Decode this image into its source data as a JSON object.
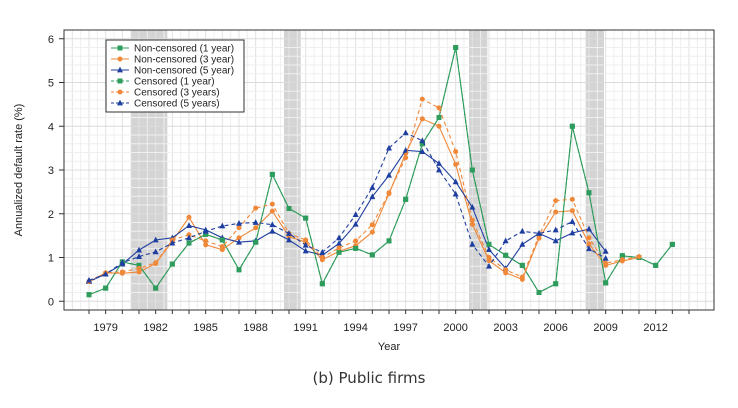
{
  "caption": "(b) Public firms",
  "chart_data": {
    "type": "line",
    "title": "",
    "xlabel": "Year",
    "ylabel": "Annualized default rate (%)",
    "xlim": [
      1976.5,
      2015.5
    ],
    "ylim": [
      -0.2,
      6.2
    ],
    "yticks": [
      0,
      1,
      2,
      3,
      4,
      5,
      6
    ],
    "xticks": [
      1979,
      1982,
      1985,
      1988,
      1991,
      1994,
      1997,
      2000,
      2003,
      2006,
      2009,
      2012
    ],
    "grid": true,
    "legend_position": "top-left",
    "recession_bands": [
      [
        1980.5,
        1982.7
      ],
      [
        1989.7,
        1990.7
      ],
      [
        2000.8,
        2001.9
      ],
      [
        2007.8,
        2008.9
      ]
    ],
    "series": [
      {
        "name": "Non-censored (1 year)",
        "color": "#2e9c5c",
        "dash": "solid",
        "marker": "square",
        "x": [
          1978,
          1979,
          1980,
          1981,
          1982,
          1983,
          1984,
          1985,
          1986,
          1987,
          1988,
          1989,
          1990,
          1991,
          1992,
          1993,
          1994,
          1995,
          1996,
          1997,
          1998,
          1999,
          2000,
          2001,
          2002,
          2003,
          2004,
          2005,
          2006,
          2007,
          2008,
          2009,
          2010,
          2011,
          2012,
          2013,
          2014
        ],
        "values": [
          0.15,
          0.3,
          0.9,
          0.82,
          0.3,
          0.85,
          1.33,
          1.53,
          1.4,
          0.72,
          1.35,
          2.9,
          2.12,
          1.9,
          0.4,
          1.12,
          1.21,
          1.06,
          1.38,
          2.33,
          3.6,
          4.2,
          5.8,
          3.0,
          1.3,
          1.05,
          0.82,
          0.2,
          0.4,
          4.0,
          2.48,
          0.42,
          1.04,
          1.0,
          0.82,
          1.3,
          null
        ]
      },
      {
        "name": "Non-censored (3 year)",
        "color": "#f0883a",
        "dash": "solid",
        "marker": "circle",
        "x": [
          1978,
          1979,
          1980,
          1981,
          1982,
          1983,
          1984,
          1985,
          1986,
          1987,
          1988,
          1989,
          1990,
          1991,
          1992,
          1993,
          1994,
          1995,
          1996,
          1997,
          1998,
          1999,
          2000,
          2001,
          2002,
          2003,
          2004,
          2005,
          2006,
          2007,
          2008,
          2009,
          2010,
          2011
        ],
        "values": [
          0.45,
          0.65,
          0.64,
          0.67,
          0.86,
          1.37,
          1.92,
          1.29,
          1.18,
          1.45,
          1.68,
          2.06,
          1.48,
          1.35,
          0.95,
          1.14,
          1.27,
          1.58,
          2.46,
          3.38,
          4.17,
          4.0,
          3.13,
          1.76,
          0.93,
          0.65,
          0.5,
          1.44,
          2.04,
          2.07,
          1.31,
          0.82,
          0.92,
          1.0
        ]
      },
      {
        "name": "Non-censored (5 year)",
        "color": "#1f3fa0",
        "dash": "solid",
        "marker": "triangle",
        "x": [
          1978,
          1979,
          1980,
          1981,
          1982,
          1983,
          1984,
          1985,
          1986,
          1987,
          1988,
          1989,
          1990,
          1991,
          1992,
          1993,
          1994,
          1995,
          1996,
          1997,
          1998,
          1999,
          2000,
          2001,
          2002,
          2003,
          2004,
          2005,
          2006,
          2007,
          2008,
          2009
        ],
        "values": [
          0.45,
          0.62,
          0.85,
          1.17,
          1.4,
          1.45,
          1.73,
          1.63,
          1.45,
          1.35,
          1.38,
          1.6,
          1.4,
          1.15,
          1.05,
          1.32,
          1.76,
          2.39,
          2.88,
          3.45,
          3.42,
          3.15,
          2.73,
          2.15,
          1.18,
          0.75,
          1.3,
          1.55,
          1.38,
          1.56,
          1.65,
          1.14
        ]
      },
      {
        "name": "Censored (1 year)",
        "color": "#2e9c5c",
        "dash": "dashed",
        "marker": "square",
        "x": [
          1978,
          1979,
          1980,
          1981,
          1982,
          1983,
          1984,
          1985,
          1986,
          1987,
          1988,
          1989,
          1990,
          1991,
          1992,
          1993,
          1994,
          1995,
          1996,
          1997,
          1998,
          1999,
          2000,
          2001,
          2002,
          2003,
          2004,
          2005,
          2006,
          2007,
          2008,
          2009,
          2010,
          2011,
          2012,
          2013
        ],
        "values": [
          0.15,
          0.3,
          0.9,
          0.82,
          0.3,
          0.85,
          1.33,
          1.53,
          1.4,
          0.72,
          1.35,
          2.9,
          2.12,
          1.9,
          0.4,
          1.12,
          1.21,
          1.06,
          1.38,
          2.33,
          3.6,
          4.2,
          5.8,
          3.0,
          1.3,
          1.05,
          0.82,
          0.2,
          0.4,
          4.0,
          2.48,
          0.42,
          1.04,
          1.0,
          0.82,
          1.3
        ]
      },
      {
        "name": "Censored (3 years)",
        "color": "#f0883a",
        "dash": "dashed",
        "marker": "circle",
        "x": [
          1978,
          1979,
          1980,
          1981,
          1982,
          1983,
          1984,
          1985,
          1986,
          1987,
          1988,
          1989,
          1990,
          1991,
          1992,
          1993,
          1994,
          1995,
          1996,
          1997,
          1998,
          1999,
          2000,
          2001,
          2002,
          2003,
          2004,
          2005,
          2006,
          2007,
          2008,
          2009,
          2010,
          2011
        ],
        "values": [
          0.45,
          0.65,
          0.67,
          0.75,
          0.88,
          1.4,
          1.52,
          1.38,
          1.25,
          1.68,
          2.13,
          2.22,
          1.55,
          1.4,
          1.0,
          1.22,
          1.38,
          1.75,
          2.48,
          3.28,
          4.62,
          4.42,
          3.42,
          1.85,
          1.0,
          0.72,
          0.55,
          1.5,
          2.3,
          2.33,
          1.45,
          0.87,
          0.95,
          1.02
        ]
      },
      {
        "name": "Censored (5 years)",
        "color": "#1f3fa0",
        "dash": "dashed",
        "marker": "triangle",
        "x": [
          1978,
          1979,
          1980,
          1981,
          1982,
          1983,
          1984,
          1985,
          1986,
          1987,
          1988,
          1989,
          1990,
          1991,
          1992,
          1993,
          1994,
          1995,
          1996,
          1997,
          1998,
          1999,
          2000,
          2001,
          2002,
          2003,
          2004,
          2005,
          2006,
          2007,
          2008,
          2009
        ],
        "values": [
          0.48,
          0.62,
          0.88,
          1.02,
          1.13,
          1.33,
          1.45,
          1.6,
          1.72,
          1.78,
          1.8,
          1.75,
          1.55,
          1.28,
          1.12,
          1.45,
          1.98,
          2.6,
          3.5,
          3.85,
          3.67,
          3.0,
          2.45,
          1.3,
          0.8,
          1.38,
          1.6,
          1.55,
          1.63,
          1.82,
          1.2,
          0.98
        ]
      }
    ]
  }
}
